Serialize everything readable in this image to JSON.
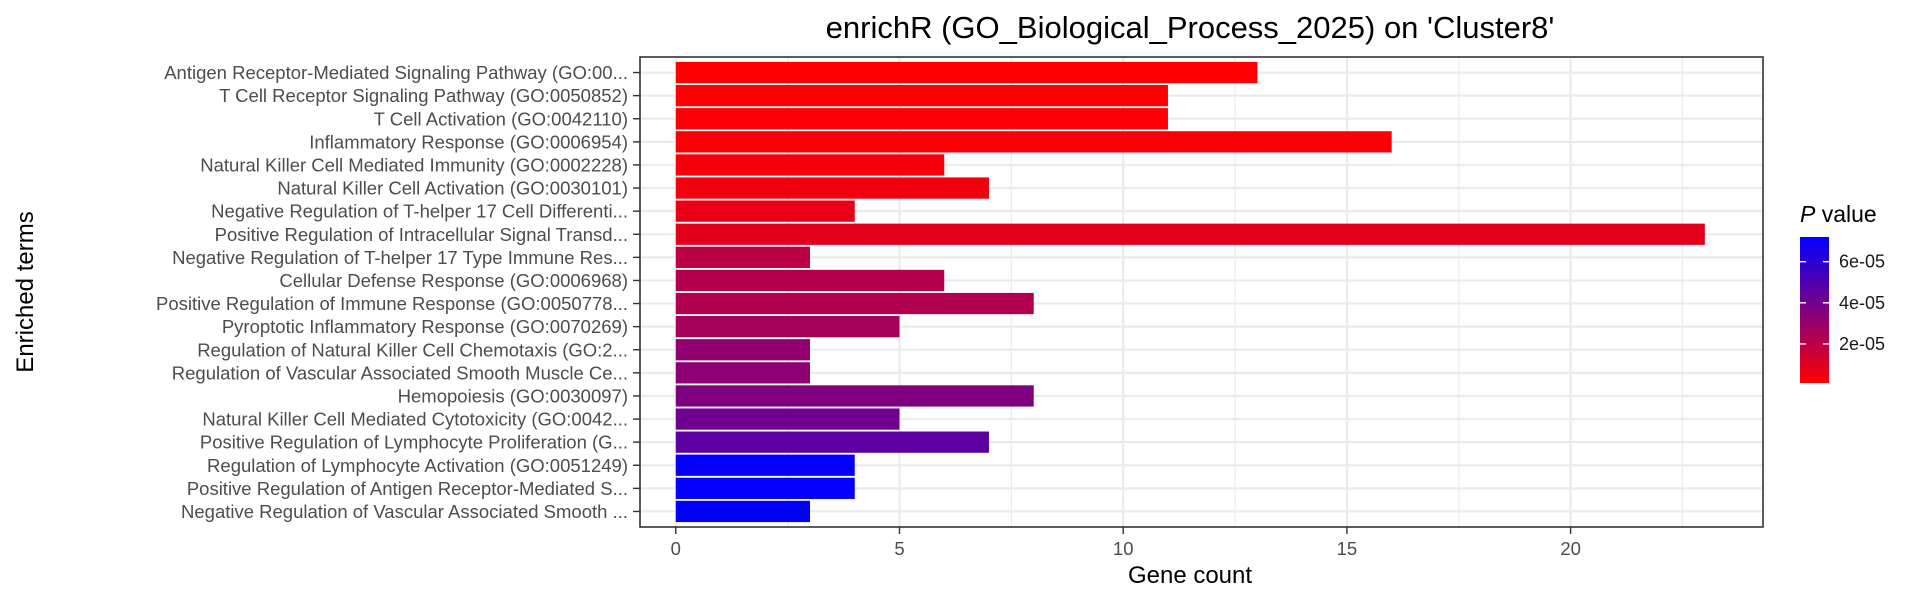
{
  "chart_data": {
    "type": "bar",
    "orientation": "horizontal",
    "title": "enrichR (GO_Biological_Process_2025) on 'Cluster8'",
    "xlabel": "Gene count",
    "ylabel": "Enriched terms",
    "xlim": [
      -0.8,
      24.3
    ],
    "xticks": [
      0,
      5,
      10,
      15,
      20
    ],
    "grid": true,
    "legend": {
      "title_italic": "P",
      "title_rest": " value",
      "position": "right",
      "ticks": [
        {
          "value": 6e-05,
          "label": "6e-05"
        },
        {
          "value": 4e-05,
          "label": "4e-05"
        },
        {
          "value": 2e-05,
          "label": "2e-05"
        }
      ],
      "range": [
        1e-06,
        7.2e-05
      ],
      "color_low": "#FF0000",
      "color_high": "#0000FF"
    },
    "terms": [
      {
        "label": "Antigen Receptor-Mediated Signaling Pathway (GO:00...",
        "count": 13,
        "pvalue": 1e-06
      },
      {
        "label": "T Cell Receptor Signaling Pathway (GO:0050852)",
        "count": 11,
        "pvalue": 1.5e-06
      },
      {
        "label": "T Cell Activation (GO:0042110)",
        "count": 11,
        "pvalue": 2e-06
      },
      {
        "label": "Inflammatory Response (GO:0006954)",
        "count": 16,
        "pvalue": 2.5e-06
      },
      {
        "label": "Natural Killer Cell Mediated Immunity (GO:0002228)",
        "count": 6,
        "pvalue": 4e-06
      },
      {
        "label": "Natural Killer Cell Activation (GO:0030101)",
        "count": 7,
        "pvalue": 5e-06
      },
      {
        "label": "Negative Regulation of T-helper 17 Cell Differenti...",
        "count": 4,
        "pvalue": 7e-06
      },
      {
        "label": "Positive Regulation of Intracellular Signal Transd...",
        "count": 23,
        "pvalue": 9e-06
      },
      {
        "label": "Negative Regulation of T-helper 17 Type Immune Res...",
        "count": 3,
        "pvalue": 2e-05
      },
      {
        "label": "Cellular Defense Response (GO:0006968)",
        "count": 6,
        "pvalue": 2.2e-05
      },
      {
        "label": "Positive Regulation of Immune Response (GO:0050778...",
        "count": 8,
        "pvalue": 2.3e-05
      },
      {
        "label": "Pyroptotic Inflammatory Response (GO:0070269)",
        "count": 5,
        "pvalue": 2.6e-05
      },
      {
        "label": "Regulation of Natural Killer Cell Chemotaxis (GO:2...",
        "count": 3,
        "pvalue": 3.2e-05
      },
      {
        "label": "Regulation of Vascular Associated Smooth Muscle Ce...",
        "count": 3,
        "pvalue": 3.3e-05
      },
      {
        "label": "Hemopoiesis (GO:0030097)",
        "count": 8,
        "pvalue": 3.7e-05
      },
      {
        "label": "Natural Killer Cell Mediated Cytotoxicity (GO:0042...",
        "count": 5,
        "pvalue": 4.1e-05
      },
      {
        "label": "Positive Regulation of Lymphocyte Proliferation (G...",
        "count": 7,
        "pvalue": 4.6e-05
      },
      {
        "label": "Regulation of Lymphocyte Activation (GO:0051249)",
        "count": 4,
        "pvalue": 7.1e-05
      },
      {
        "label": "Positive Regulation of Antigen Receptor-Mediated S...",
        "count": 4,
        "pvalue": 7.1e-05
      },
      {
        "label": "Negative Regulation of Vascular Associated Smooth ...",
        "count": 3,
        "pvalue": 7.2e-05
      }
    ]
  }
}
